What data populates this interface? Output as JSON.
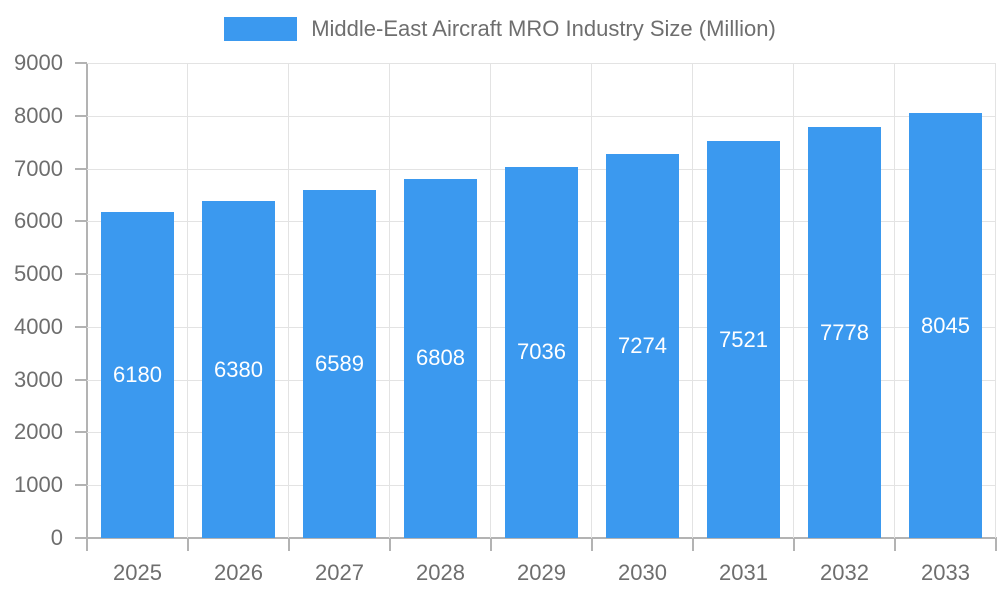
{
  "legend": {
    "label": "Middle-East Aircraft MRO Industry Size (Million)"
  },
  "colors": {
    "bar": "#3b99ef",
    "grid": "#e3e3e3",
    "axis_line": "#b3b3b3",
    "axis_text": "#6e6e6e",
    "bar_label_text": "#ffffff",
    "background": "#ffffff"
  },
  "chart_data": {
    "type": "bar",
    "title": "Middle-East Aircraft MRO Industry Size (Million)",
    "series_name": "Middle-East Aircraft MRO Industry Size (Million)",
    "categories": [
      "2025",
      "2026",
      "2027",
      "2028",
      "2029",
      "2030",
      "2031",
      "2032",
      "2033"
    ],
    "values": [
      6180,
      6380,
      6589,
      6808,
      7036,
      7274,
      7521,
      7778,
      8045
    ],
    "value_labels": [
      "6180",
      "6380",
      "6589",
      "6808",
      "7036",
      "7274",
      "7521",
      "7778",
      "8045"
    ],
    "ytick_labels": [
      "0",
      "1000",
      "2000",
      "3000",
      "4000",
      "5000",
      "6000",
      "7000",
      "8000",
      "9000"
    ],
    "xlabel": "",
    "ylabel": "",
    "ylim": [
      0,
      9000
    ],
    "ytick_step": 1000,
    "grid": true,
    "legend_position": "top",
    "value_label_position": "inside-center"
  }
}
